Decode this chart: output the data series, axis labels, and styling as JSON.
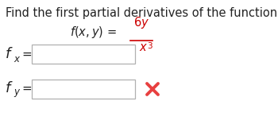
{
  "background_color": "#ffffff",
  "title_text": "Find the first partial derivatives of the function.",
  "title_fontsize": 10.5,
  "title_color": "#222222",
  "fraction_color": "#cc0000",
  "label_color": "#222222",
  "cross_color": "#e84040",
  "fig_w": 3.5,
  "fig_h": 1.71,
  "dpi": 100
}
